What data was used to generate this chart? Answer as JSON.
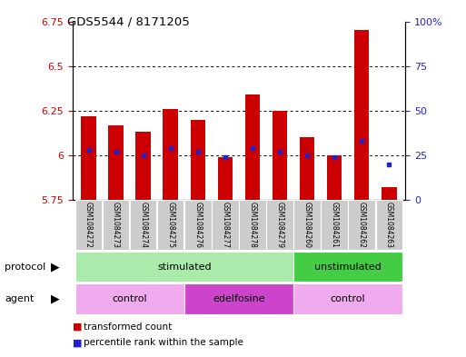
{
  "title": "GDS5544 / 8171205",
  "samples": [
    "GSM1084272",
    "GSM1084273",
    "GSM1084274",
    "GSM1084275",
    "GSM1084276",
    "GSM1084277",
    "GSM1084278",
    "GSM1084279",
    "GSM1084260",
    "GSM1084261",
    "GSM1084262",
    "GSM1084263"
  ],
  "bar_bottom": 5.75,
  "transformed_count": [
    6.22,
    6.17,
    6.13,
    6.26,
    6.2,
    5.99,
    6.34,
    6.25,
    6.1,
    6.0,
    6.7,
    5.82
  ],
  "percentile_rank": [
    28,
    27,
    25,
    29,
    27,
    24,
    29,
    27,
    25,
    24,
    33,
    20
  ],
  "ylim_left": [
    5.75,
    6.75
  ],
  "ylim_right": [
    0,
    100
  ],
  "yticks_left": [
    5.75,
    6.0,
    6.25,
    6.5,
    6.75
  ],
  "ytick_labels_left": [
    "5.75",
    "6",
    "6.25",
    "6.5",
    "6.75"
  ],
  "yticks_right": [
    0,
    25,
    50,
    75,
    100
  ],
  "ytick_labels_right": [
    "0",
    "25",
    "50",
    "75",
    "100%"
  ],
  "grid_values": [
    6.0,
    6.25,
    6.5
  ],
  "bar_color": "#cc0000",
  "blue_color": "#2222cc",
  "bg_color": "#ffffff",
  "plot_bg_color": "#ffffff",
  "protocol_groups": [
    {
      "label": "stimulated",
      "start": 0,
      "end": 7,
      "color": "#aaeaaa"
    },
    {
      "label": "unstimulated",
      "start": 8,
      "end": 11,
      "color": "#44cc44"
    }
  ],
  "agent_groups": [
    {
      "label": "control",
      "start": 0,
      "end": 3,
      "color": "#f0aaee"
    },
    {
      "label": "edelfosine",
      "start": 4,
      "end": 7,
      "color": "#cc44cc"
    },
    {
      "label": "control",
      "start": 8,
      "end": 11,
      "color": "#f0aaee"
    }
  ],
  "legend_items": [
    {
      "label": "transformed count",
      "color": "#cc0000"
    },
    {
      "label": "percentile rank within the sample",
      "color": "#2222cc"
    }
  ],
  "tick_label_color_left": "#cc0000",
  "tick_label_color_right": "#2222cc",
  "bar_width": 0.55,
  "sample_bg_color": "#cccccc"
}
